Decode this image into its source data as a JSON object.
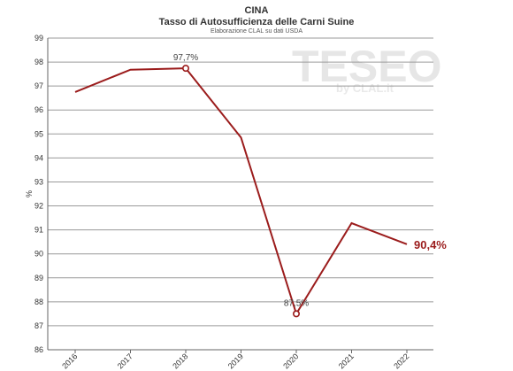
{
  "header": {
    "title": "CINA",
    "subtitle": "Tasso di Autosufficienza delle Carni Suine",
    "source": "Elaborazione CLAL su dati USDA"
  },
  "watermark": {
    "main": "TESEO",
    "sub": "by CLAL.it"
  },
  "colors": {
    "line": "#9b1c1c",
    "grid": "#9a9a9a",
    "axis": "#666666"
  },
  "chart_data": {
    "type": "line",
    "title": "CINA",
    "subtitle": "Tasso di Autosufficienza delle Carni Suine",
    "x": [
      "2016",
      "2017",
      "2018",
      "2019",
      "2020",
      "2021",
      "2022"
    ],
    "series": [
      {
        "values": [
          96.75,
          97.68,
          97.74,
          94.85,
          87.5,
          91.28,
          90.4
        ]
      }
    ],
    "xlabel": "",
    "ylabel": "%",
    "ylim": [
      86,
      99
    ],
    "yticks": [
      86,
      87,
      88,
      89,
      90,
      91,
      92,
      93,
      94,
      95,
      96,
      97,
      98,
      99
    ],
    "grid": true,
    "annotations": [
      {
        "x": "2018",
        "y": 97.74,
        "text": "97,7%",
        "marker": "open-circle"
      },
      {
        "x": "2020",
        "y": 87.5,
        "text": "87,5%",
        "marker": "open-circle"
      },
      {
        "x": "2022",
        "y": 90.4,
        "text": "90,4%",
        "emphasis": "bold"
      }
    ]
  }
}
